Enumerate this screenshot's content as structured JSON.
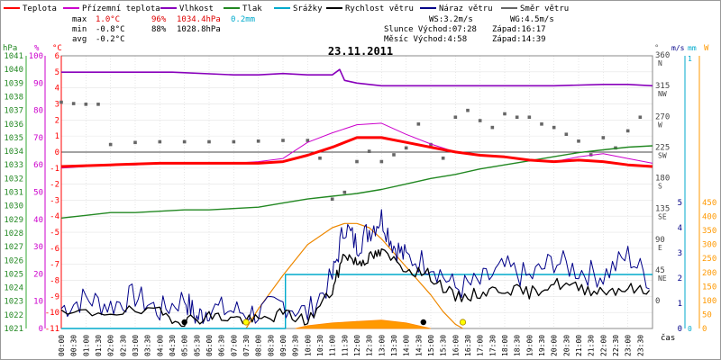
{
  "chart_data": {
    "type": "line",
    "title": "23.11.2011",
    "legend": [
      {
        "name": "Teplota",
        "color": "#ff0000"
      },
      {
        "name": "Přízemní teplota",
        "color": "#cc00cc"
      },
      {
        "name": "Vlhkost",
        "color": "#8800bb"
      },
      {
        "name": "Tlak",
        "color": "#228822"
      },
      {
        "name": "Srážky",
        "color": "#00aacc"
      },
      {
        "name": "Rychlost větru",
        "color": "#000000"
      },
      {
        "name": "Náraz větru",
        "color": "#000088"
      },
      {
        "name": "Směr větru",
        "color": "#666666"
      }
    ],
    "stats": {
      "max": {
        "label": "max",
        "temp": "1.0°C",
        "hum": "96%",
        "press": "1034.4hPa",
        "rain": "0.2mm"
      },
      "min": {
        "label": "min",
        "temp": "-0.8°C",
        "hum": "88%",
        "press": "1028.8hPa"
      },
      "avg": {
        "label": "avg",
        "temp": "-0.2°C"
      }
    },
    "info": {
      "ws": "WS:3.2m/s",
      "wg": "WG:4.5m/s",
      "sun": "Slunce Východ:07:28",
      "sun_set": "Západ:16:17",
      "moon": "Měsíc Východ:4:58",
      "moon_set": "Západ:14:39"
    },
    "axis_units": {
      "hpa": "hPa",
      "pct": "%",
      "degc": "°C",
      "dir": "°",
      "ms": "m/s",
      "mm": "mm",
      "w": "W",
      "time": "čas"
    },
    "hpa_ticks": [
      "1041",
      "1040",
      "1039",
      "1038",
      "1037",
      "1036",
      "1035",
      "1034",
      "1033",
      "1032",
      "1031",
      "1030",
      "1029",
      "1028",
      "1027",
      "1026",
      "1025",
      "1024",
      "1023",
      "1022",
      "1021"
    ],
    "pct_ticks": [
      "100",
      "90",
      "80",
      "70",
      "60",
      "50",
      "40",
      "30",
      "20",
      "10",
      "0"
    ],
    "degc_ticks": [
      "6",
      "5",
      "4",
      "3",
      "2",
      "1",
      "0",
      "-1",
      "-2",
      "-3",
      "-4",
      "-5",
      "-6",
      "-7",
      "-8",
      "-9",
      "-10",
      "-11"
    ],
    "dir_ticks": [
      {
        "deg": "360",
        "lbl": "N"
      },
      {
        "deg": "315",
        "lbl": "NW"
      },
      {
        "deg": "270",
        "lbl": "W"
      },
      {
        "deg": "225",
        "lbl": "SW"
      },
      {
        "deg": "180",
        "lbl": "S"
      },
      {
        "deg": "135",
        "lbl": "SE"
      },
      {
        "deg": "90",
        "lbl": "E"
      },
      {
        "deg": "45",
        "lbl": "NE"
      },
      {
        "deg": "0",
        "lbl": ""
      }
    ],
    "ms_ticks": [
      "5",
      "4",
      "3",
      "2",
      "1",
      "0"
    ],
    "mm_ticks": [
      "1",
      "0"
    ],
    "w_ticks": [
      "450",
      "400",
      "350",
      "300",
      "250",
      "200",
      "150",
      "100",
      "50",
      "0"
    ],
    "time_labels": [
      "00:00",
      "00:30",
      "01:00",
      "01:30",
      "02:00",
      "02:30",
      "03:00",
      "03:30",
      "04:00",
      "04:30",
      "05:00",
      "05:30",
      "06:00",
      "06:30",
      "07:00",
      "07:30",
      "08:00",
      "08:30",
      "09:00",
      "09:30",
      "10:00",
      "10:30",
      "11:00",
      "11:30",
      "12:00",
      "12:30",
      "13:00",
      "13:30",
      "14:00",
      "14:30",
      "15:00",
      "15:30",
      "16:00",
      "16:30",
      "17:00",
      "17:30",
      "18:00",
      "18:30",
      "19:00",
      "19:30",
      "20:00",
      "20:30",
      "21:00",
      "21:30",
      "22:00",
      "22:30",
      "23:00",
      "23:30"
    ],
    "x_unit": "hours",
    "xlim": [
      0,
      24
    ],
    "temperature": {
      "x": [
        0,
        1,
        2,
        3,
        4,
        5,
        6,
        7,
        8,
        9,
        10,
        11,
        12,
        13,
        14,
        15,
        16,
        17,
        18,
        19,
        20,
        21,
        22,
        23,
        24
      ],
      "y": [
        -0.9,
        -0.85,
        -0.8,
        -0.75,
        -0.7,
        -0.7,
        -0.7,
        -0.7,
        -0.7,
        -0.6,
        -0.2,
        0.3,
        0.9,
        0.9,
        0.6,
        0.3,
        0.0,
        -0.2,
        -0.3,
        -0.5,
        -0.6,
        -0.5,
        -0.6,
        -0.8,
        -0.9
      ]
    },
    "ground_temperature": {
      "x": [
        0,
        1,
        2,
        3,
        4,
        5,
        6,
        7,
        8,
        9,
        10,
        11,
        12,
        13,
        14,
        15,
        16,
        17,
        18,
        19,
        20,
        21,
        22,
        23,
        24
      ],
      "y": [
        -1.0,
        -0.9,
        -0.8,
        -0.8,
        -0.7,
        -0.7,
        -0.7,
        -0.7,
        -0.6,
        -0.4,
        0.6,
        1.2,
        1.7,
        1.8,
        1.1,
        0.5,
        0.0,
        -0.2,
        -0.3,
        -0.5,
        -0.6,
        -0.3,
        -0.1,
        -0.4,
        -0.7
      ]
    },
    "humidity": {
      "x": [
        0,
        3,
        4.5,
        7,
        8,
        9,
        10,
        11,
        11.3,
        11.5,
        12,
        13,
        14,
        16,
        18,
        20,
        22,
        23,
        24
      ],
      "y": [
        94,
        94,
        94,
        93,
        93,
        93.5,
        93,
        93,
        95,
        91,
        90,
        89,
        89,
        89,
        89,
        89,
        89.5,
        89.5,
        89
      ]
    },
    "pressure": {
      "x": [
        0,
        1,
        2,
        3,
        4,
        5,
        6,
        7,
        8,
        9,
        10,
        11,
        12,
        13,
        14,
        15,
        16,
        17,
        18,
        19,
        20,
        21,
        22,
        23,
        24
      ],
      "y": [
        1029.1,
        1029.3,
        1029.5,
        1029.5,
        1029.6,
        1029.7,
        1029.7,
        1029.8,
        1029.9,
        1030.2,
        1030.5,
        1030.7,
        1030.9,
        1031.2,
        1031.6,
        1032.0,
        1032.3,
        1032.7,
        1033.0,
        1033.3,
        1033.6,
        1033.9,
        1034.1,
        1034.3,
        1034.4
      ]
    },
    "rain_mm": {
      "x": [
        0,
        9.1,
        9.1,
        24
      ],
      "y": [
        0,
        0,
        0.2,
        0.2
      ]
    },
    "wind_speed": {
      "x": [
        0,
        2,
        4,
        5,
        6,
        7,
        8,
        9,
        10,
        11,
        11.5,
        12,
        12.5,
        13,
        14,
        15,
        16,
        17,
        18,
        19,
        20,
        21,
        22,
        23,
        24
      ],
      "y": [
        0.5,
        0.7,
        0.6,
        0.3,
        0.5,
        0.4,
        0.3,
        0.6,
        0.3,
        1.5,
        3.0,
        2.6,
        2.8,
        3.0,
        2.4,
        2.1,
        1.2,
        1.4,
        1.6,
        1.4,
        1.8,
        1.6,
        1.5,
        1.6,
        1.4
      ]
    },
    "wind_gust": {
      "x": [
        0,
        1,
        2,
        3,
        4,
        5,
        5.5,
        6,
        7,
        8,
        9,
        10,
        11,
        11.5,
        12,
        12.5,
        13,
        13.5,
        14,
        15,
        16,
        17,
        18,
        19,
        20,
        21,
        22,
        23,
        24
      ],
      "y": [
        0.8,
        1.2,
        0.9,
        1.3,
        0.7,
        1.2,
        0.4,
        0.8,
        0.7,
        0.6,
        1.0,
        0.6,
        2.0,
        4.1,
        3.3,
        3.9,
        4.4,
        3.3,
        2.8,
        2.6,
        1.6,
        1.8,
        2.4,
        2.0,
        2.7,
        2.3,
        2.1,
        2.9,
        1.8
      ]
    },
    "wind_dir": {
      "x": [
        0,
        0.5,
        1,
        1.5,
        2,
        3,
        4,
        5,
        6,
        7,
        8,
        9,
        10,
        10.5,
        11,
        11.5,
        12,
        12.5,
        13,
        13.5,
        14,
        14.5,
        15,
        15.5,
        16,
        16.5,
        17,
        17.5,
        18,
        18.5,
        19,
        19.5,
        20,
        20.5,
        21,
        21.5,
        22,
        22.5,
        23,
        23.5
      ],
      "y": [
        292,
        290,
        289,
        289,
        230,
        233,
        234,
        234,
        234,
        234,
        235,
        236,
        236,
        210,
        150,
        160,
        205,
        220,
        205,
        215,
        225,
        260,
        230,
        210,
        270,
        280,
        265,
        255,
        275,
        270,
        270,
        260,
        255,
        245,
        235,
        215,
        240,
        225,
        250,
        270
      ]
    },
    "solar": {
      "x": [
        7.5,
        8,
        9,
        10,
        11,
        11.5,
        12,
        12.5,
        13,
        14,
        15,
        15.5,
        16,
        16.3
      ],
      "y": [
        0,
        70,
        190,
        300,
        360,
        375,
        375,
        360,
        320,
        220,
        120,
        60,
        15,
        0
      ]
    },
    "solar_measured": {
      "x": [
        9.5,
        10,
        11,
        12,
        13,
        14,
        14.5,
        15
      ],
      "y": [
        0,
        10,
        20,
        25,
        30,
        20,
        10,
        0
      ]
    },
    "sun_markers": [
      {
        "x": 7.5,
        "type": "rise"
      },
      {
        "x": 16.3,
        "type": "set"
      }
    ],
    "moon_markers": [
      {
        "x": 5.0,
        "type": "rise"
      },
      {
        "x": 14.7,
        "type": "set"
      }
    ]
  }
}
